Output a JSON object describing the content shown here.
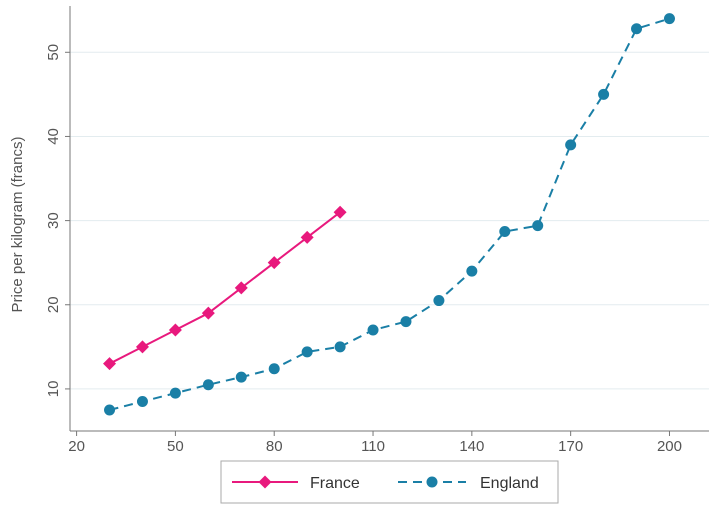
{
  "chart_data": {
    "type": "line",
    "title": "",
    "xlabel": "",
    "ylabel": "Price per kilogram (francs)",
    "xlim": [
      18,
      212
    ],
    "ylim": [
      5,
      55.5
    ],
    "x_ticks": [
      20,
      50,
      80,
      110,
      140,
      170,
      200
    ],
    "y_ticks": [
      10,
      20,
      30,
      40,
      50
    ],
    "grid": "horizontal",
    "legend": {
      "position": "bottom"
    },
    "series": [
      {
        "name": "France",
        "color": "#e8197d",
        "marker": "diamond",
        "line_style": "solid",
        "x": [
          30,
          40,
          50,
          60,
          70,
          80,
          90,
          100
        ],
        "y": [
          13,
          15,
          17,
          19,
          22,
          25,
          28,
          31
        ]
      },
      {
        "name": "England",
        "color": "#1a7fa6",
        "marker": "circle",
        "line_style": "dashed",
        "x": [
          30,
          40,
          50,
          60,
          70,
          80,
          90,
          100,
          110,
          120,
          130,
          140,
          150,
          160,
          170,
          180,
          190,
          200
        ],
        "y": [
          7.5,
          8.5,
          9.5,
          10.5,
          11.4,
          12.4,
          14.4,
          15,
          17,
          18,
          20.5,
          24,
          28.7,
          29.4,
          39,
          45,
          52.8,
          54
        ]
      }
    ]
  }
}
